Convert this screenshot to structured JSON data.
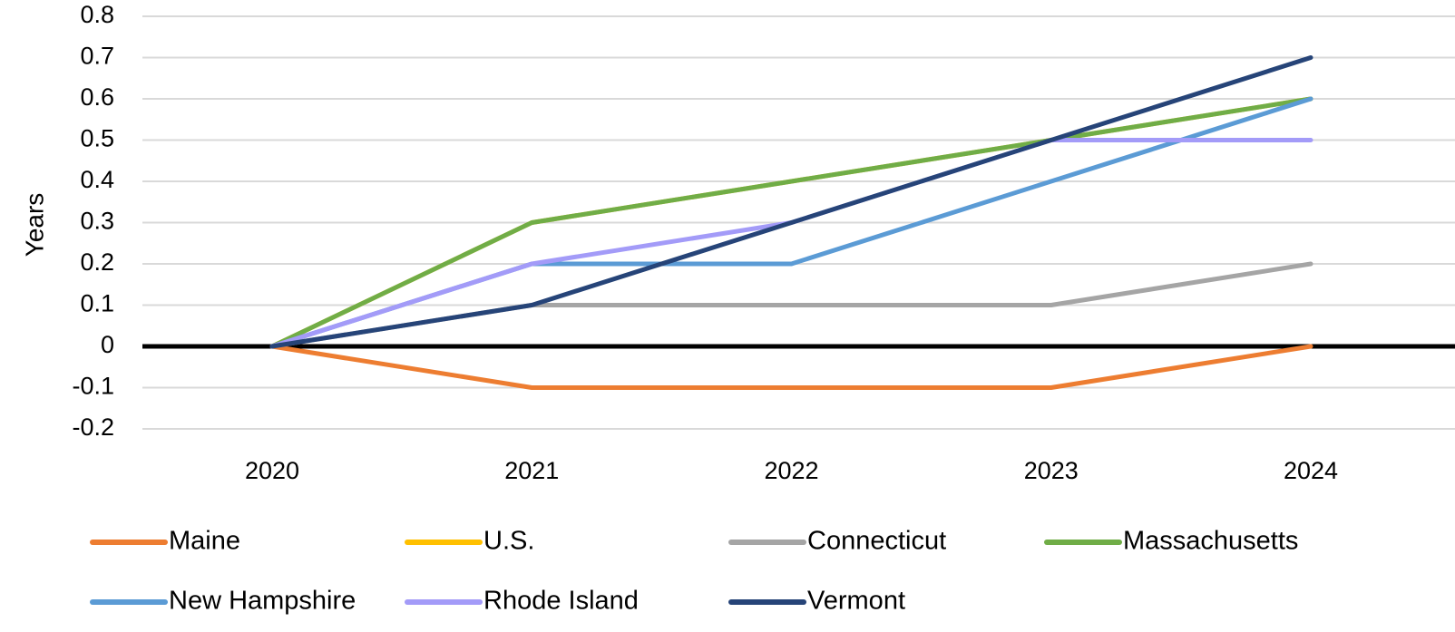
{
  "chart_data": {
    "type": "line",
    "title": "",
    "xlabel": "",
    "ylabel": "Years",
    "x": [
      "2020",
      "2021",
      "2022",
      "2023",
      "2024"
    ],
    "ylim": [
      -0.2,
      0.8
    ],
    "yticks": [
      "-0.2",
      "-0.1",
      "0",
      "0.1",
      "0.2",
      "0.3",
      "0.4",
      "0.5",
      "0.6",
      "0.7",
      "0.8"
    ],
    "grid": true,
    "legend_position": "bottom",
    "series": [
      {
        "name": "Maine",
        "color": "#ED7D31",
        "values": [
          0,
          -0.1,
          -0.1,
          -0.1,
          0
        ]
      },
      {
        "name": "U.S.",
        "color": "#FFC000",
        "values": [
          0,
          0.3,
          0.4,
          0.5,
          0.6
        ]
      },
      {
        "name": "Connecticut",
        "color": "#A5A5A5",
        "values": [
          0,
          0.1,
          0.1,
          0.1,
          0.2
        ]
      },
      {
        "name": "Massachusetts",
        "color": "#70AD47",
        "values": [
          0,
          0.3,
          0.4,
          0.5,
          0.6
        ]
      },
      {
        "name": "New Hampshire",
        "color": "#5B9BD5",
        "values": [
          0,
          0.2,
          0.2,
          0.4,
          0.6
        ]
      },
      {
        "name": "Rhode Island",
        "color": "#A39BF8",
        "values": [
          0,
          0.2,
          0.3,
          0.5,
          0.5
        ]
      },
      {
        "name": "Vermont",
        "color": "#264478",
        "values": [
          0,
          0.1,
          0.3,
          0.5,
          0.7
        ]
      }
    ]
  }
}
